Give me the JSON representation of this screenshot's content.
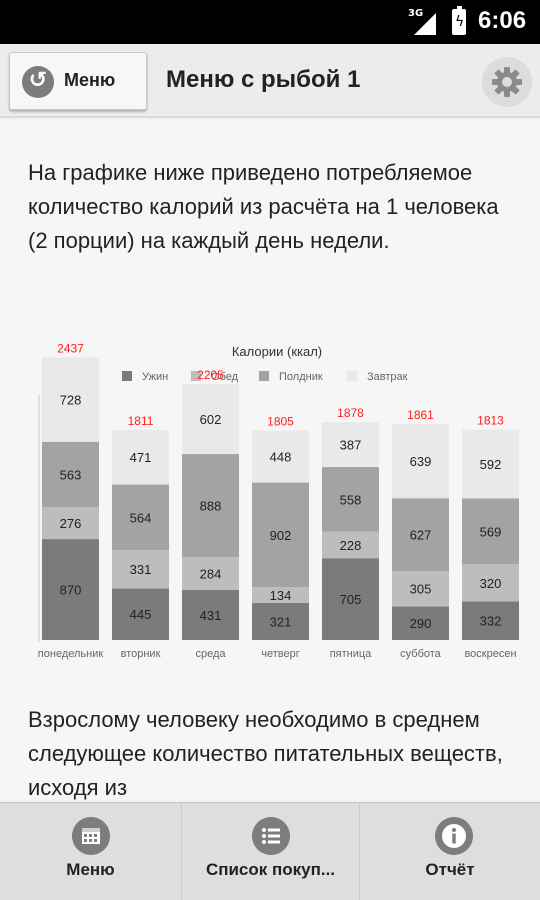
{
  "status_bar": {
    "network": "3G",
    "time": "6:06",
    "icons": [
      "signal-icon",
      "battery-charging-icon"
    ]
  },
  "action_bar": {
    "back_label": "Меню",
    "title": "Меню с рыбой 1",
    "icons": [
      "back-arrow-icon",
      "gear-icon"
    ]
  },
  "intro_text": "На графике ниже приведено потребляемое количество калорий из расчёта на 1 человека (2 порции) на каждый день недели.",
  "chart_data": {
    "type": "bar",
    "stacked": true,
    "title": "Калории (ккал)",
    "categories": [
      "понедельник",
      "вторник",
      "среда",
      "четверг",
      "пятница",
      "суббота",
      "воскресен"
    ],
    "series": [
      {
        "name": "Ужин",
        "color": "#7b7b7b",
        "values": [
          870,
          445,
          431,
          321,
          705,
          290,
          332
        ]
      },
      {
        "name": "Обед",
        "color": "#bdbdbd",
        "values": [
          276,
          331,
          284,
          134,
          228,
          305,
          320
        ]
      },
      {
        "name": "Полдник",
        "color": "#a3a3a3",
        "values": [
          563,
          564,
          888,
          902,
          558,
          627,
          569
        ]
      },
      {
        "name": "Завтрак",
        "color": "#e9e9e9",
        "values": [
          728,
          471,
          602,
          448,
          387,
          639,
          592
        ]
      }
    ],
    "legend_order": [
      "Ужин",
      "Обед",
      "Полдник",
      "Завтрак"
    ],
    "legend_colors": [
      "#7b7b7b",
      "#bdbdbd",
      "#a3a3a3",
      "#e9e9e9"
    ],
    "totals": [
      2437,
      1811,
      2205,
      1805,
      1878,
      1861,
      1813
    ],
    "total_color": "#ff2020",
    "ylim": [
      0,
      2500
    ],
    "legend_position": "top",
    "grid": false
  },
  "nutrition_text": "Взрослому человеку необходимо в среднем следующее количество питательных веществ, исходя из",
  "bottom_nav": {
    "tabs": [
      {
        "label": "Меню",
        "icon": "calendar-icon"
      },
      {
        "label": "Список покуп...",
        "icon": "list-icon"
      },
      {
        "label": "Отчёт",
        "icon": "info-icon"
      }
    ]
  }
}
